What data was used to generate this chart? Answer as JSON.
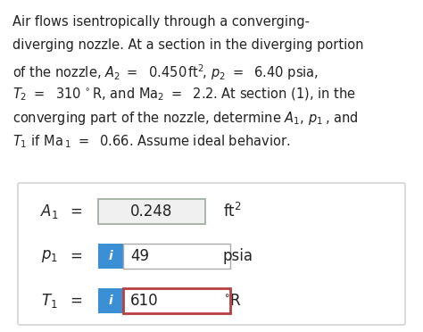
{
  "bg_color": "#ffffff",
  "panel_bg": "#ffffff",
  "panel_border": "#cccccc",
  "blue": "#3b8fd4",
  "red_border": "#b94040",
  "a1_box_border": "#9aaa9a",
  "a1_box_bg": "#f0f0f0",
  "text_color": "#222222",
  "white": "#ffffff",
  "rows": [
    {
      "label": "$A_1$",
      "eq": "=",
      "value": "0.248",
      "unit": "ft$^2$",
      "has_icon": false,
      "red_box": false,
      "gray_box": true
    },
    {
      "label": "$p_1$",
      "eq": "=",
      "value": "49",
      "unit": "psia",
      "has_icon": true,
      "red_box": false,
      "gray_box": false
    },
    {
      "label": "$T_1$",
      "eq": "=",
      "value": "610",
      "unit": "$^{\\circ}$R",
      "has_icon": true,
      "red_box": true,
      "gray_box": false
    }
  ],
  "para_lines": [
    "Air flows isentropically through a converging-",
    "diverging nozzle. At a section in the diverging portion",
    "of the nozzle, $A_2\\ =\\ \\ 0.450\\,\\mathrm{ft}^2\\!,\\,p_2\\ =\\ \\ 6.40$ psia,",
    "$T_2\\ =\\ \\ 310\\,^\\circ\\mathrm{R}$, and $\\mathrm{Ma}_2\\ =\\ \\ 2.2$. At section (1), in the",
    "converging part of the nozzle, determine $A_1,\\,p_1\\,$, and",
    "$T_1$ if Ma$\\,_1\\ =\\ \\ 0.66$. Assume ideal behavior."
  ]
}
